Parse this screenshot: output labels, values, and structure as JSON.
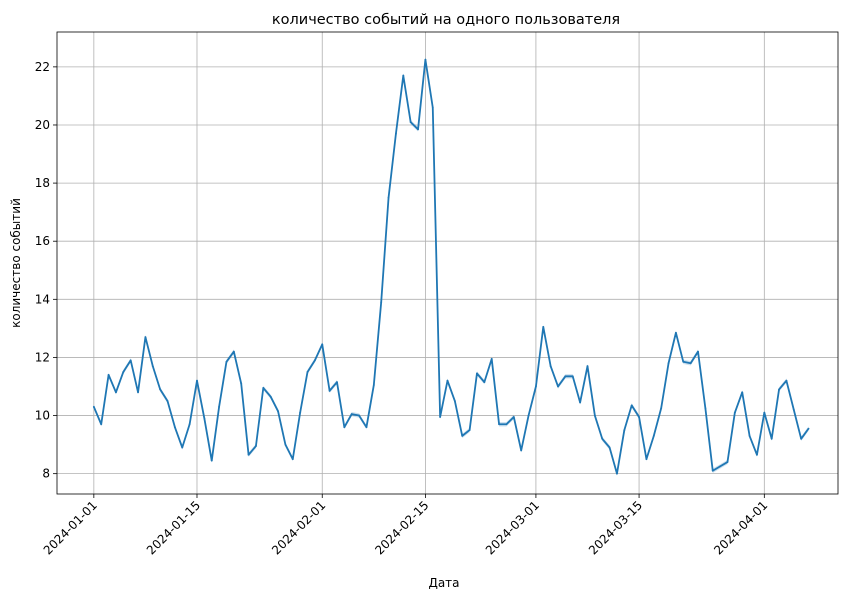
{
  "chart_data": {
    "type": "line",
    "title": "количество событий на одного пользователя",
    "xlabel": "Дата",
    "ylabel": "количество событий",
    "grid": true,
    "x_start": "2024-01-01",
    "xlim": [
      "2023-12-27",
      "2024-04-11"
    ],
    "ylim": [
      7.3,
      23.2
    ],
    "x_ticks": [
      "2024-01-01",
      "2024-01-15",
      "2024-02-01",
      "2024-02-15",
      "2024-03-01",
      "2024-03-15",
      "2024-04-01"
    ],
    "y_ticks": [
      8,
      10,
      12,
      14,
      16,
      18,
      20,
      22
    ],
    "series": [
      {
        "color": "#1f77b4",
        "values": [
          10.3,
          9.7,
          11.4,
          10.8,
          11.5,
          11.9,
          10.8,
          12.7,
          11.7,
          10.9,
          10.5,
          9.6,
          8.9,
          9.7,
          11.2,
          9.9,
          8.45,
          10.3,
          11.85,
          12.2,
          11.1,
          8.65,
          8.95,
          10.95,
          10.65,
          10.15,
          9.0,
          8.5,
          10.1,
          11.5,
          11.9,
          12.45,
          10.85,
          11.15,
          9.6,
          10.05,
          10.0,
          9.6,
          11.05,
          13.9,
          17.5,
          19.7,
          21.7,
          20.1,
          19.85,
          22.25,
          20.6,
          9.95,
          11.2,
          10.5,
          9.3,
          9.5,
          11.45,
          11.15,
          11.95,
          9.7,
          9.7,
          9.95,
          8.8,
          10.0,
          11.0,
          13.05,
          11.7,
          11.0,
          11.35,
          11.35,
          10.45,
          11.7,
          10.0,
          9.2,
          8.9,
          8.0,
          9.5,
          10.35,
          9.95,
          8.5,
          9.3,
          10.25,
          11.8,
          12.85,
          11.85,
          11.8,
          12.2,
          10.25,
          8.1,
          8.25,
          8.4,
          10.1,
          10.8,
          9.3,
          8.65,
          10.1,
          9.2,
          10.9,
          11.2,
          10.2,
          9.2,
          9.55
        ]
      }
    ]
  }
}
